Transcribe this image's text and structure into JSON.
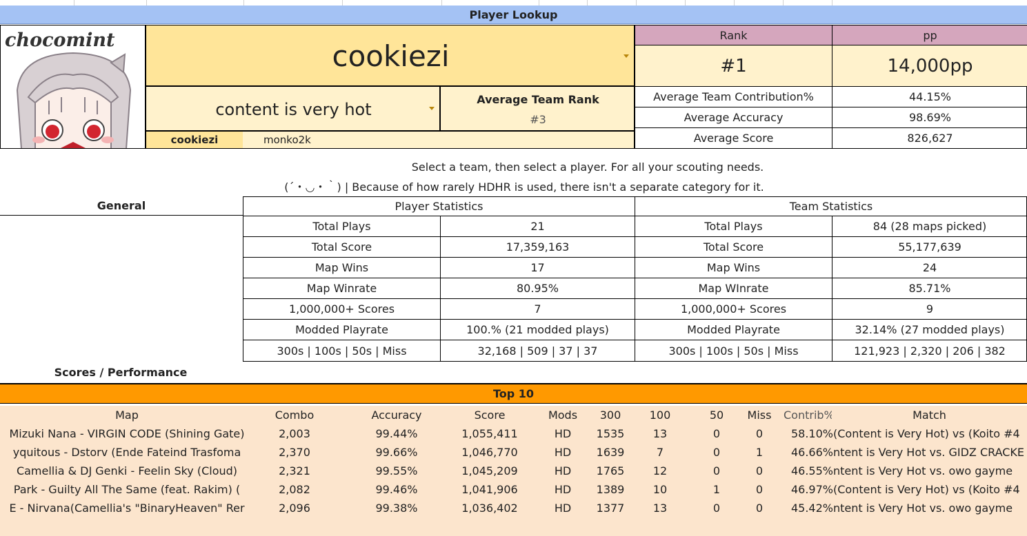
{
  "header": {
    "title": "Player Lookup",
    "logo_text": "chocomint"
  },
  "player": {
    "selected_player": "cookiezi",
    "selected_team": "content is very hot",
    "avg_team_rank_label": "Average Team Rank",
    "avg_team_rank_value": "#3",
    "team_members": [
      "cookiezi",
      "monko2k"
    ]
  },
  "rank_panel": {
    "rank_label": "Rank",
    "pp_label": "pp",
    "rank_value": "#1",
    "pp_value": "14,000pp",
    "metrics": [
      {
        "label": "Average Team Contribution%",
        "value": "44.15%"
      },
      {
        "label": "Average Accuracy",
        "value": "98.69%"
      },
      {
        "label": "Average Score",
        "value": "826,627"
      }
    ]
  },
  "notes": {
    "line1": "Select a team, then select a player. For all your scouting needs.",
    "line2": "(´・◡・｀) | Because of how rarely HDHR is used, there isn't a separate category for it."
  },
  "general": {
    "section_label": "General",
    "player_stats_title": "Player Statistics",
    "team_stats_title": "Team Statistics",
    "rows": [
      {
        "label": "Total Plays",
        "player": "21",
        "team": "84 (28 maps picked)"
      },
      {
        "label": "Total Score",
        "player": "17,359,163",
        "team": "55,177,639"
      },
      {
        "label": "Map Wins",
        "player": "17",
        "team": "24"
      },
      {
        "label": "Map Winrate",
        "team_label": "Map WInrate",
        "player": "80.95%",
        "team": "85.71%"
      },
      {
        "label": "1,000,000+ Scores",
        "player": "7",
        "team": "9"
      },
      {
        "label": "Modded Playrate",
        "player": "100.% (21 modded plays)",
        "team": "32.14% (27 modded plays)"
      },
      {
        "label": "300s | 100s | 50s | Miss",
        "player": "32,168 | 509 | 37 | 37",
        "team": "121,923 | 2,320 | 206 | 382"
      }
    ]
  },
  "scores": {
    "section_label": "Scores / Performance",
    "top10_title": "Top 10",
    "columns": [
      "Map",
      "Combo",
      "Accuracy",
      "Score",
      "Mods",
      "300",
      "100",
      "50",
      "Miss",
      "Contrib%",
      "Match"
    ],
    "rows": [
      {
        "map": "Mizuki Nana - VIRGIN CODE (Shining Gate)",
        "combo": "2,003",
        "acc": "99.44%",
        "score": "1,055,411",
        "mods": "HD",
        "c300": "1535",
        "c100": "13",
        "c50": "0",
        "miss": "0",
        "contrib": "58.10%",
        "match": "(Content is Very Hot) vs (Koito #4"
      },
      {
        "map": "yquitous - Dstorv (Ende Fateind Trasfoma",
        "combo": "2,370",
        "acc": "99.66%",
        "score": "1,046,770",
        "mods": "HD",
        "c300": "1639",
        "c100": "7",
        "c50": "0",
        "miss": "1",
        "contrib": "46.66%",
        "match": "ntent is Very Hot vs. GIDZ CRACKE"
      },
      {
        "map": "Camellia & DJ Genki - Feelin Sky (Cloud)",
        "combo": "2,321",
        "acc": "99.55%",
        "score": "1,045,209",
        "mods": "HD",
        "c300": "1765",
        "c100": "12",
        "c50": "0",
        "miss": "0",
        "contrib": "46.55%",
        "match": "ntent is Very Hot vs. owo gayme"
      },
      {
        "map": "Park - Guilty All The Same (feat. Rakim) (",
        "combo": "2,082",
        "acc": "99.46%",
        "score": "1,041,906",
        "mods": "HD",
        "c300": "1389",
        "c100": "10",
        "c50": "1",
        "miss": "0",
        "contrib": "46.97%",
        "match": "(Content is Very Hot) vs (Koito #4"
      },
      {
        "map": "E - Nirvana(Camellia's \"BinaryHeaven\" Rer",
        "combo": "2,096",
        "acc": "99.38%",
        "score": "1,036,402",
        "mods": "HD",
        "c300": "1377",
        "c100": "13",
        "c50": "0",
        "miss": "0",
        "contrib": "45.42%",
        "match": "ntent is Very Hot vs. owo gayme"
      },
      {
        "map": "",
        "combo": "",
        "acc": "",
        "score": "",
        "mods": "",
        "c300": "",
        "c100": "",
        "c50": "",
        "miss": "",
        "contrib": "",
        "match": ""
      }
    ]
  },
  "colors": {
    "title_bar": "#a4c2f4",
    "yellow": "#ffe599",
    "yellow_light": "#fff2cc",
    "pink": "#d5a6bd",
    "orange": "#ff9900",
    "peach": "#fce5cd"
  }
}
